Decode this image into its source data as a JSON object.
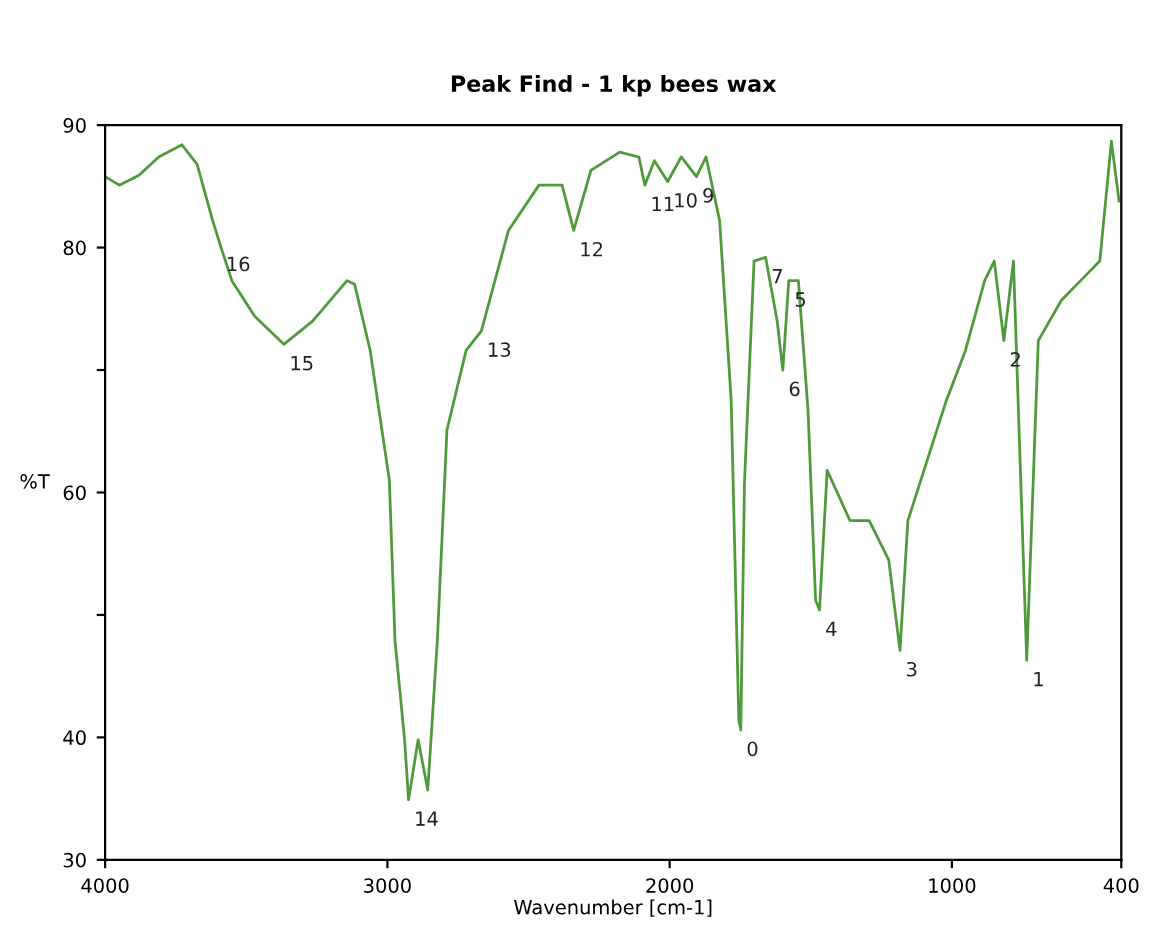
{
  "chart_data": {
    "type": "line",
    "title": "Peak Find - 1 kp bees wax",
    "xlabel": "Wavenumber [cm-1]",
    "ylabel": "%T",
    "xlim": [
      4000,
      400
    ],
    "xticks": [
      4000,
      3000,
      2000,
      1000,
      400
    ],
    "ylim": [
      30,
      90
    ],
    "yticks": [
      30,
      40,
      {
        "value": 50,
        "label": null
      },
      60,
      {
        "value": 70,
        "label": null
      },
      80,
      90
    ],
    "grid": false,
    "legend": false,
    "series": [
      {
        "color": "#4f9a3c",
        "x": [
          4000,
          3950,
          3880,
          3810,
          3728,
          3674,
          3619,
          3592,
          3551,
          3470,
          3367,
          3265,
          3143,
          3116,
          3061,
          2993,
          2973,
          2939,
          2925,
          2891,
          2857,
          2823,
          2789,
          2721,
          2667,
          2571,
          2463,
          2381,
          2340,
          2279,
          2177,
          2109,
          2088,
          2054,
          2007,
          1959,
          1905,
          1871,
          1823,
          1782,
          1755,
          1748,
          1735,
          1701,
          1660,
          1619,
          1599,
          1578,
          1544,
          1510,
          1483,
          1469,
          1442,
          1361,
          1293,
          1224,
          1184,
          1156,
          1088,
          1020,
          952,
          884,
          850,
          816,
          782,
          735,
          694,
          612,
          544,
          476,
          435,
          408
        ],
        "values": [
          85.8,
          85.1,
          85.9,
          87.4,
          88.4,
          86.8,
          82.2,
          80.2,
          77.3,
          74.4,
          72.1,
          74.0,
          77.3,
          77.0,
          71.6,
          61.0,
          47.9,
          39.8,
          34.9,
          39.8,
          35.7,
          47.9,
          65.1,
          71.6,
          73.2,
          81.4,
          85.1,
          85.1,
          81.4,
          86.3,
          87.8,
          87.4,
          85.1,
          87.1,
          85.4,
          87.4,
          85.8,
          87.4,
          82.2,
          67.5,
          41.4,
          40.6,
          60.8,
          78.9,
          79.2,
          74.0,
          70.0,
          77.3,
          77.3,
          66.8,
          51.2,
          50.4,
          61.8,
          57.7,
          57.7,
          54.5,
          47.1,
          57.7,
          62.6,
          67.5,
          71.6,
          77.3,
          78.9,
          72.4,
          78.9,
          46.3,
          72.4,
          75.7,
          77.3,
          78.9,
          88.7,
          83.8
        ]
      }
    ],
    "annotations": [
      {
        "text": "16",
        "x": 3592,
        "y": 80.2
      },
      {
        "text": "15",
        "x": 3367,
        "y": 72.1
      },
      {
        "text": "14",
        "x": 2925,
        "y": 34.9
      },
      {
        "text": "13",
        "x": 2667,
        "y": 73.2
      },
      {
        "text": "12",
        "x": 2340,
        "y": 81.4
      },
      {
        "text": "11",
        "x": 2088,
        "y": 85.1
      },
      {
        "text": "10",
        "x": 2007,
        "y": 85.4
      },
      {
        "text": "9",
        "x": 1905,
        "y": 85.8
      },
      {
        "text": "0",
        "x": 1748,
        "y": 40.6
      },
      {
        "text": "7",
        "x": 1660,
        "y": 79.2
      },
      {
        "text": "6",
        "x": 1599,
        "y": 70.0
      },
      {
        "text": "5",
        "x": 1578,
        "y": 77.3
      },
      {
        "text": "4",
        "x": 1469,
        "y": 50.4
      },
      {
        "text": "3",
        "x": 1184,
        "y": 47.1
      },
      {
        "text": "2",
        "x": 816,
        "y": 72.4
      },
      {
        "text": "1",
        "x": 735,
        "y": 46.3
      }
    ]
  }
}
